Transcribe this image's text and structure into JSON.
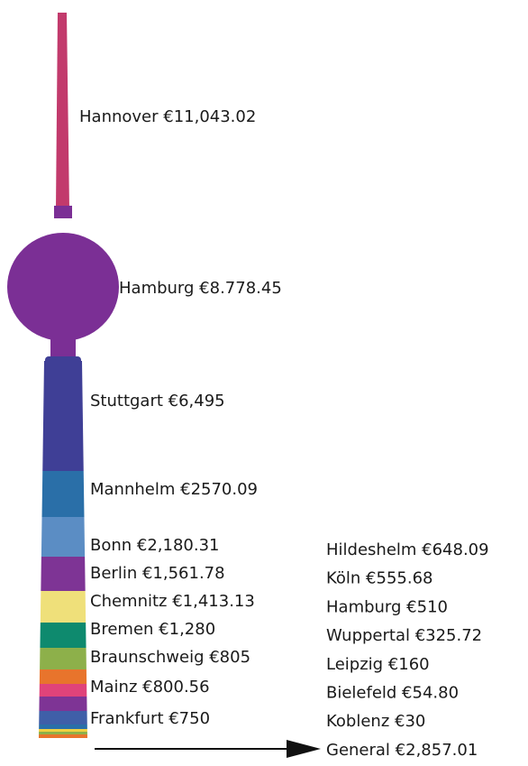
{
  "left_labels": [
    "Hannover €11,043.02",
    "Hamburg €8.778.45",
    "Stuttgart €6,495",
    "Mannhelm €2570.09",
    "Bonn €2,180.31",
    "Berlin €1,561.78",
    "Chemnitz €1,413.13",
    "Bremen €1,280",
    "Braunschweig €805",
    "Mainz €800.56",
    "Frankfurt €750"
  ],
  "right_labels": [
    "Hildeshelm €648.09",
    "Köln €555.68",
    "Hamburg €510",
    "Wuppertal €325.72",
    "Leipzig €160",
    "Bielefeld €54.80",
    "Koblenz €30",
    "General €2,857.01"
  ]
}
